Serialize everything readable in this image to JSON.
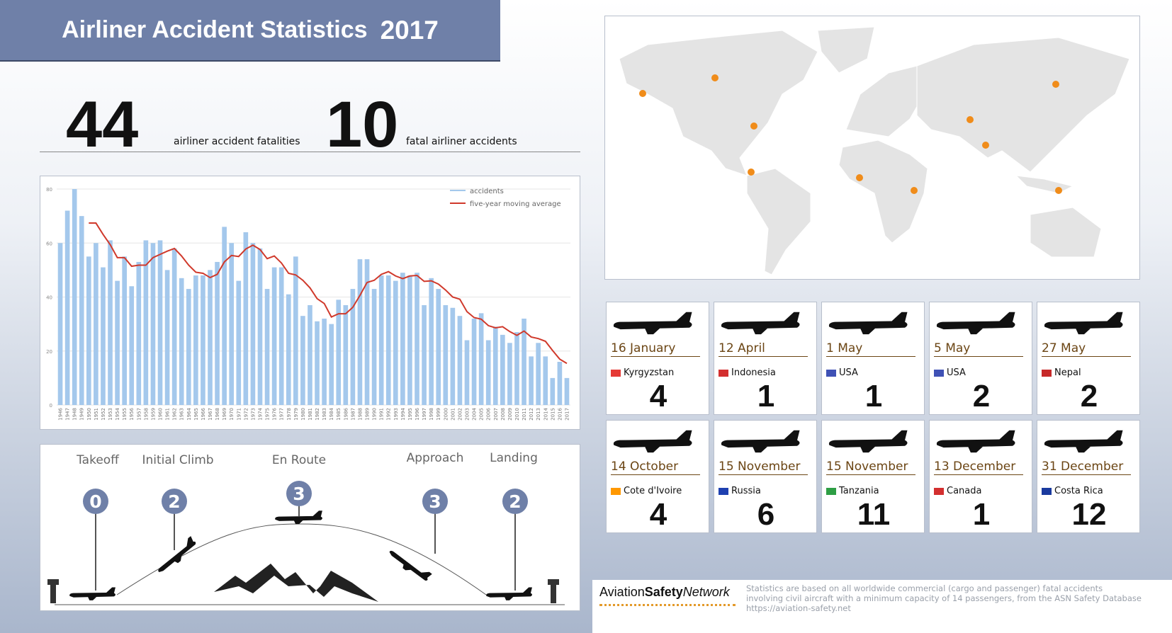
{
  "header": {
    "title": "Airliner Accident Statistics",
    "year": "2017"
  },
  "summary": [
    {
      "value": 44,
      "label": "airliner accident fatalities"
    },
    {
      "value": 10,
      "label": "fatal airliner accidents"
    }
  ],
  "chart_data": {
    "type": "bar",
    "categories": [
      "1946",
      "1947",
      "1948",
      "1949",
      "1950",
      "1951",
      "1952",
      "1953",
      "1954",
      "1955",
      "1956",
      "1957",
      "1958",
      "1959",
      "1960",
      "1961",
      "1962",
      "1963",
      "1964",
      "1965",
      "1966",
      "1967",
      "1968",
      "1969",
      "1970",
      "1971",
      "1972",
      "1973",
      "1974",
      "1975",
      "1976",
      "1977",
      "1978",
      "1979",
      "1980",
      "1981",
      "1982",
      "1983",
      "1984",
      "1985",
      "1986",
      "1987",
      "1988",
      "1989",
      "1990",
      "1991",
      "1992",
      "1993",
      "1994",
      "1995",
      "1996",
      "1997",
      "1998",
      "1999",
      "2000",
      "2001",
      "2002",
      "2003",
      "2004",
      "2005",
      "2006",
      "2007",
      "2008",
      "2009",
      "2010",
      "2011",
      "2012",
      "2013",
      "2014",
      "2015",
      "2016",
      "2017"
    ],
    "series": [
      {
        "name": "accidents",
        "type": "bar",
        "color": "#a4c8ec",
        "values": [
          60,
          72,
          80,
          70,
          55,
          60,
          51,
          61,
          46,
          55,
          44,
          53,
          61,
          60,
          61,
          50,
          58,
          47,
          43,
          48,
          48,
          50,
          53,
          66,
          60,
          46,
          64,
          60,
          58,
          43,
          51,
          51,
          41,
          55,
          33,
          37,
          31,
          32,
          30,
          39,
          37,
          43,
          54,
          54,
          43,
          48,
          48,
          46,
          49,
          48,
          49,
          37,
          47,
          43,
          37,
          36,
          33,
          24,
          32,
          34,
          24,
          29,
          26,
          23,
          27,
          32,
          18,
          23,
          18,
          10,
          16,
          10
        ]
      },
      {
        "name": "five-year moving average",
        "type": "line",
        "color": "#d0392b",
        "values": [
          null,
          null,
          null,
          null,
          67.4,
          67.4,
          63.2,
          59.4,
          54.6,
          54.6,
          51.4,
          51.8,
          51.8,
          54.6,
          55.8,
          57,
          58,
          55.2,
          51.8,
          49.2,
          48.8,
          47.2,
          48.4,
          53,
          55.4,
          55,
          57.8,
          59.2,
          57.6,
          54.2,
          55.2,
          52.6,
          48.8,
          48.2,
          46.2,
          43.4,
          39.4,
          37.6,
          32.6,
          33.8,
          33.8,
          36.2,
          40.6,
          45.4,
          46.2,
          48.4,
          49.4,
          47.8,
          46.8,
          47.8,
          48,
          45.8,
          46,
          44.8,
          42.6,
          40,
          39.2,
          34.6,
          32.4,
          31.8,
          29.4,
          28.6,
          29,
          27.2,
          25.8,
          27.4,
          25.2,
          24.6,
          23.6,
          20.2,
          17,
          15.4
        ]
      }
    ],
    "ylim": [
      0,
      80
    ],
    "yticks": [
      0,
      20,
      40,
      60,
      80
    ],
    "grid": true,
    "legend": "top-right"
  },
  "phases": [
    {
      "name": "Takeoff",
      "count": 0
    },
    {
      "name": "Initial Climb",
      "count": 2
    },
    {
      "name": "En Route",
      "count": 3
    },
    {
      "name": "Approach",
      "count": 3
    },
    {
      "name": "Landing",
      "count": 2
    }
  ],
  "accidents": [
    {
      "date": "16 January",
      "country": "Kyrgyzstan",
      "fatalities": 4
    },
    {
      "date": "12 April",
      "country": "Indonesia",
      "fatalities": 1
    },
    {
      "date": "1 May",
      "country": "USA",
      "fatalities": 1
    },
    {
      "date": "5 May",
      "country": "USA",
      "fatalities": 2
    },
    {
      "date": "27 May",
      "country": "Nepal",
      "fatalities": 2
    },
    {
      "date": "14 October",
      "country": "Cote d'Ivoire",
      "fatalities": 4
    },
    {
      "date": "15 November",
      "country": "Russia",
      "fatalities": 6
    },
    {
      "date": "15 November",
      "country": "Tanzania",
      "fatalities": 11
    },
    {
      "date": "13 December",
      "country": "Canada",
      "fatalities": 1
    },
    {
      "date": "31 December",
      "country": "Costa Rica",
      "fatalities": 12
    }
  ],
  "footer": {
    "logo": [
      "Aviation",
      "Safety",
      "Network"
    ],
    "note": [
      "Statistics are based on all worldwide commercial (cargo and passenger) fatal accidents",
      "involving civil aircraft with a minimum capacity of 14 passengers, from the ASN Safety Database",
      "https://aviation-safety.net"
    ]
  }
}
